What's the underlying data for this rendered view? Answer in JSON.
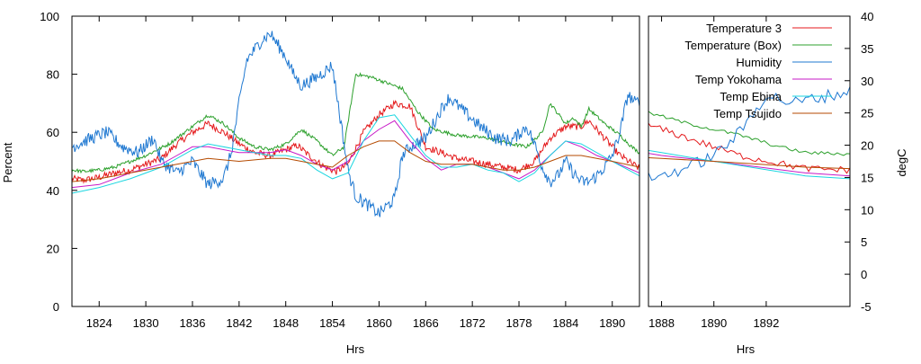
{
  "chart_data": {
    "type": "line",
    "left_panel": {
      "xlabel": "Hrs",
      "ylabel": "Percent",
      "xlim": [
        1820.5,
        1893.5
      ],
      "ylim": [
        0,
        100
      ],
      "xticks": [
        1824,
        1830,
        1836,
        1842,
        1848,
        1854,
        1860,
        1866,
        1872,
        1878,
        1884,
        1890
      ],
      "yticks": [
        0,
        20,
        40,
        60,
        80,
        100
      ]
    },
    "right_panel": {
      "xlabel": "Hrs",
      "ylabel": "degC",
      "xlim": [
        1887.5,
        1895.2
      ],
      "ylim": [
        -5,
        40
      ],
      "xticks": [
        1888,
        1890,
        1892
      ],
      "yticks": [
        -5,
        0,
        5,
        10,
        15,
        20,
        25,
        30,
        35,
        40
      ]
    },
    "legend": {
      "placement": "top-right",
      "entries": [
        "Temperature 3",
        "Temperature (Box)",
        "Humidity",
        "Temp Yokohama",
        "Temp Ebina",
        "Temp Tsujido"
      ]
    },
    "series": [
      {
        "name": "Temperature 3",
        "color": "#e41a1c",
        "axis": "left",
        "noise": 1.2,
        "points": [
          [
            1820.5,
            44
          ],
          [
            1822,
            43.5
          ],
          [
            1824,
            44.5
          ],
          [
            1826,
            46
          ],
          [
            1828,
            47
          ],
          [
            1830,
            49
          ],
          [
            1832,
            51
          ],
          [
            1834,
            56
          ],
          [
            1836,
            60
          ],
          [
            1838,
            63
          ],
          [
            1840,
            60
          ],
          [
            1842,
            56
          ],
          [
            1844,
            53
          ],
          [
            1846,
            52
          ],
          [
            1848,
            54
          ],
          [
            1849.5,
            55.5
          ],
          [
            1851,
            52
          ],
          [
            1853,
            48
          ],
          [
            1854.5,
            46.5
          ],
          [
            1856,
            49
          ],
          [
            1858,
            60
          ],
          [
            1860,
            66
          ],
          [
            1862,
            70
          ],
          [
            1864,
            69
          ],
          [
            1866,
            55
          ],
          [
            1868,
            53
          ],
          [
            1870,
            51
          ],
          [
            1872,
            50
          ],
          [
            1874,
            49
          ],
          [
            1876,
            48
          ],
          [
            1878,
            47
          ],
          [
            1880,
            50
          ],
          [
            1882,
            58
          ],
          [
            1884,
            62
          ],
          [
            1886,
            62
          ],
          [
            1887,
            64
          ],
          [
            1889,
            58
          ],
          [
            1891,
            52
          ],
          [
            1893.5,
            47.5
          ],
          [
            1895.2,
            47
          ]
        ]
      },
      {
        "name": "Temperature (Box)",
        "color": "#2ca02c",
        "axis": "left",
        "noise": 0.6,
        "points": [
          [
            1820.5,
            47
          ],
          [
            1822,
            46.5
          ],
          [
            1824,
            47
          ],
          [
            1826,
            48
          ],
          [
            1828,
            50
          ],
          [
            1830,
            52
          ],
          [
            1833,
            56
          ],
          [
            1836,
            62
          ],
          [
            1838,
            66
          ],
          [
            1840,
            63
          ],
          [
            1842,
            58
          ],
          [
            1844,
            55
          ],
          [
            1846,
            54
          ],
          [
            1848,
            56
          ],
          [
            1850,
            61
          ],
          [
            1852,
            57
          ],
          [
            1854,
            52
          ],
          [
            1855.5,
            55
          ],
          [
            1857,
            80
          ],
          [
            1859,
            79
          ],
          [
            1861,
            77
          ],
          [
            1863,
            75
          ],
          [
            1865,
            67
          ],
          [
            1867,
            61
          ],
          [
            1870,
            59
          ],
          [
            1874,
            58
          ],
          [
            1877,
            56
          ],
          [
            1879,
            55
          ],
          [
            1881,
            60
          ],
          [
            1882,
            70
          ],
          [
            1884,
            63
          ],
          [
            1885,
            65
          ],
          [
            1886,
            62
          ],
          [
            1887,
            68
          ],
          [
            1889,
            63
          ],
          [
            1891,
            59
          ],
          [
            1892.5,
            55
          ],
          [
            1893.5,
            53
          ],
          [
            1895.2,
            52.5
          ]
        ]
      },
      {
        "name": "Humidity",
        "color": "#1f78d1",
        "axis": "left",
        "noise": 2.2,
        "points": [
          [
            1820.5,
            55
          ],
          [
            1823,
            58
          ],
          [
            1825,
            60
          ],
          [
            1827,
            55
          ],
          [
            1829,
            53
          ],
          [
            1831,
            58
          ],
          [
            1832,
            50
          ],
          [
            1834,
            46
          ],
          [
            1836,
            50
          ],
          [
            1838,
            42
          ],
          [
            1840,
            44
          ],
          [
            1841,
            53
          ],
          [
            1842,
            70
          ],
          [
            1843,
            85
          ],
          [
            1845,
            92
          ],
          [
            1846,
            94
          ],
          [
            1848,
            86
          ],
          [
            1849,
            80
          ],
          [
            1850,
            76
          ],
          [
            1852,
            79
          ],
          [
            1854,
            83
          ],
          [
            1855,
            65
          ],
          [
            1856,
            47
          ],
          [
            1857,
            38
          ],
          [
            1859,
            34
          ],
          [
            1860,
            32
          ],
          [
            1862,
            37
          ],
          [
            1863,
            52
          ],
          [
            1864,
            55
          ],
          [
            1866,
            58
          ],
          [
            1868,
            68
          ],
          [
            1869,
            72
          ],
          [
            1871,
            67
          ],
          [
            1873,
            62
          ],
          [
            1875,
            58
          ],
          [
            1877,
            57
          ],
          [
            1879,
            62
          ],
          [
            1880,
            56
          ],
          [
            1881,
            48
          ],
          [
            1882,
            43
          ],
          [
            1883,
            45
          ],
          [
            1884,
            50
          ],
          [
            1885,
            46
          ],
          [
            1886,
            43
          ],
          [
            1887,
            43
          ],
          [
            1888,
            45
          ],
          [
            1889,
            48
          ],
          [
            1890,
            52
          ],
          [
            1891,
            60
          ],
          [
            1892,
            73
          ],
          [
            1893,
            70
          ],
          [
            1894,
            72
          ],
          [
            1895.2,
            74
          ]
        ]
      },
      {
        "name": "Temp Yokohama",
        "color": "#c71ac7",
        "axis": "left",
        "noise": 0,
        "points": [
          [
            1820.5,
            41
          ],
          [
            1824,
            42
          ],
          [
            1828,
            46
          ],
          [
            1832,
            49
          ],
          [
            1834,
            52
          ],
          [
            1836,
            55
          ],
          [
            1838,
            55
          ],
          [
            1842,
            53
          ],
          [
            1846,
            53
          ],
          [
            1848,
            54
          ],
          [
            1850,
            52
          ],
          [
            1852,
            49
          ],
          [
            1854,
            47
          ],
          [
            1856,
            50
          ],
          [
            1858,
            57
          ],
          [
            1860,
            61
          ],
          [
            1862,
            64
          ],
          [
            1864,
            57
          ],
          [
            1866,
            51
          ],
          [
            1868,
            47
          ],
          [
            1870,
            49
          ],
          [
            1872,
            49
          ],
          [
            1874,
            48
          ],
          [
            1876,
            46
          ],
          [
            1878,
            44
          ],
          [
            1880,
            47
          ],
          [
            1882,
            52
          ],
          [
            1884,
            57
          ],
          [
            1886,
            55
          ],
          [
            1888,
            52
          ],
          [
            1890,
            50
          ],
          [
            1893.5,
            46
          ],
          [
            1895.2,
            45
          ]
        ]
      },
      {
        "name": "Temp Ebina",
        "color": "#1ad6e0",
        "axis": "left",
        "noise": 0,
        "points": [
          [
            1820.5,
            39
          ],
          [
            1824,
            41
          ],
          [
            1828,
            44
          ],
          [
            1832,
            48
          ],
          [
            1834,
            51
          ],
          [
            1836,
            54
          ],
          [
            1838,
            56
          ],
          [
            1842,
            54
          ],
          [
            1846,
            52
          ],
          [
            1848,
            52
          ],
          [
            1850,
            51
          ],
          [
            1852,
            47
          ],
          [
            1854,
            44
          ],
          [
            1856,
            46
          ],
          [
            1858,
            57
          ],
          [
            1860,
            65
          ],
          [
            1862,
            66
          ],
          [
            1864,
            59
          ],
          [
            1866,
            52
          ],
          [
            1868,
            48
          ],
          [
            1870,
            48
          ],
          [
            1872,
            49
          ],
          [
            1874,
            47
          ],
          [
            1876,
            46
          ],
          [
            1878,
            43
          ],
          [
            1880,
            46
          ],
          [
            1882,
            52
          ],
          [
            1884,
            57
          ],
          [
            1886,
            56
          ],
          [
            1888,
            53
          ],
          [
            1890,
            50
          ],
          [
            1893.5,
            45
          ],
          [
            1895.2,
            44
          ]
        ]
      },
      {
        "name": "Temp Tsujido",
        "color": "#b54a00",
        "axis": "left",
        "noise": 0,
        "points": [
          [
            1820.5,
            43
          ],
          [
            1824,
            44
          ],
          [
            1828,
            46
          ],
          [
            1832,
            48
          ],
          [
            1836,
            50
          ],
          [
            1838,
            51
          ],
          [
            1842,
            50
          ],
          [
            1846,
            51
          ],
          [
            1848,
            51
          ],
          [
            1850,
            50
          ],
          [
            1852,
            49
          ],
          [
            1854,
            48
          ],
          [
            1856,
            52
          ],
          [
            1858,
            55
          ],
          [
            1860,
            57
          ],
          [
            1862,
            57
          ],
          [
            1864,
            53
          ],
          [
            1866,
            50
          ],
          [
            1868,
            49
          ],
          [
            1870,
            49
          ],
          [
            1872,
            49
          ],
          [
            1874,
            48
          ],
          [
            1876,
            47
          ],
          [
            1878,
            47
          ],
          [
            1880,
            48
          ],
          [
            1882,
            50
          ],
          [
            1884,
            52
          ],
          [
            1886,
            52
          ],
          [
            1888,
            51
          ],
          [
            1890,
            50
          ],
          [
            1893.5,
            48
          ],
          [
            1895.2,
            47.5
          ]
        ]
      }
    ]
  }
}
